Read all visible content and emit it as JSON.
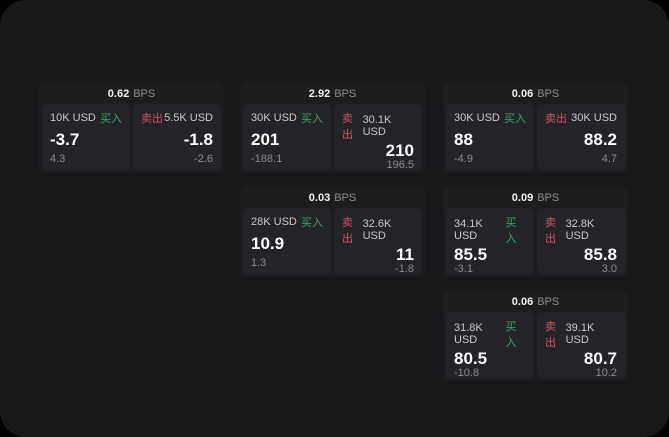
{
  "labels": {
    "bps_suffix": "BPS",
    "buy": "买入",
    "sell": "卖出"
  },
  "colors": {
    "buy_green": "#3ba566",
    "sell_red": "#cc5266",
    "window_background": "#18181a",
    "card_background": "#1d1d1f",
    "panel_background": "#242428",
    "value_text": "#ffffff",
    "muted_text": "#8b8b8b"
  },
  "cards": [
    {
      "col": 1,
      "row": 1,
      "bps": "0.62",
      "buy": {
        "size": "10K USD",
        "value": "-3.7",
        "sub": "4.3"
      },
      "sell": {
        "size": "5.5K USD",
        "value": "-1.8",
        "sub": "-2.6"
      }
    },
    {
      "col": 2,
      "row": 1,
      "bps": "2.92",
      "buy": {
        "size": "30K USD",
        "value": "201",
        "sub": "-188.1"
      },
      "sell": {
        "size": "30.1K USD",
        "value": "210",
        "sub": "196.5"
      }
    },
    {
      "col": 3,
      "row": 1,
      "bps": "0.06",
      "buy": {
        "size": "30K USD",
        "value": "88",
        "sub": "-4.9"
      },
      "sell": {
        "size": "30K USD",
        "value": "88.2",
        "sub": "4.7"
      }
    },
    {
      "col": 2,
      "row": 2,
      "bps": "0.03",
      "buy": {
        "size": "28K USD",
        "value": "10.9",
        "sub": "1.3"
      },
      "sell": {
        "size": "32.6K USD",
        "value": "11",
        "sub": "-1.8"
      }
    },
    {
      "col": 3,
      "row": 2,
      "bps": "0.09",
      "buy": {
        "size": "34.1K USD",
        "value": "85.5",
        "sub": "-3.1"
      },
      "sell": {
        "size": "32.8K USD",
        "value": "85.8",
        "sub": "3.0"
      }
    },
    {
      "col": 3,
      "row": 3,
      "bps": "0.06",
      "buy": {
        "size": "31.8K USD",
        "value": "80.5",
        "sub": "-10.8"
      },
      "sell": {
        "size": "39.1K USD",
        "value": "80.7",
        "sub": "10.2"
      }
    }
  ]
}
